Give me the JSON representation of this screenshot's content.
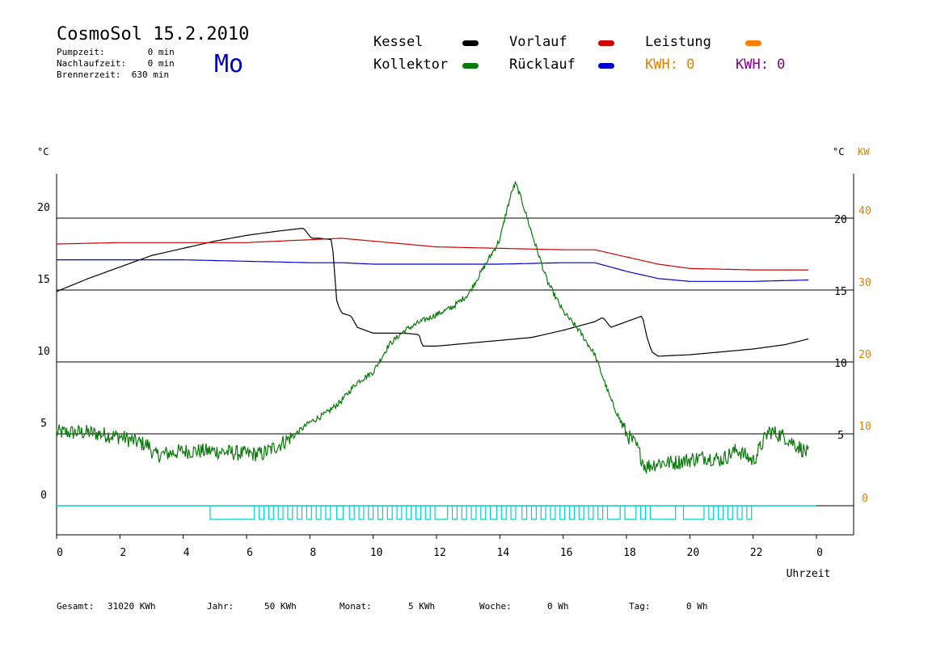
{
  "header": {
    "title": "CosmoSol 15.2.2010",
    "day": "Mo",
    "pumpzeit": "Pumpzeit:        0 min",
    "nachlaufzeit": "Nachlaufzeit:    0 min",
    "brennerzeit": "Brennerzeit:  630 min"
  },
  "legend": {
    "kessel": "Kessel",
    "vorlauf": "Vorlauf",
    "leistung": "Leistung",
    "kollektor": "Kollektor",
    "ruecklauf": "Rücklauf",
    "kwh_orange": "KWH: 0",
    "kwh_purple": "KWH: 0"
  },
  "footer": {
    "gesamt_label": "Gesamt:",
    "gesamt_value": "31020 KWh",
    "jahr_label": "Jahr:",
    "jahr_value": "50 KWh",
    "monat_label": "Monat:",
    "monat_value": "5 KWh",
    "woche_label": "Woche:",
    "woche_value": "0 Wh",
    "tag_label": "Tag:",
    "tag_value": "0 Wh"
  },
  "colors": {
    "kessel": "#000000",
    "kollektor": "#0a7a0a",
    "vorlauf": "#cc0000",
    "ruecklauf": "#0000cc",
    "leistung": "#ff8000",
    "pump": "#00d0d0",
    "kwh_purple": "#800080"
  },
  "chart_data": {
    "type": "line",
    "xlabel": "Uhrzeit",
    "y_left_unit": "°C",
    "y_right_unit": "°C",
    "y_right2_unit": "KW",
    "x_ticks": [
      "0",
      "2",
      "4",
      "6",
      "8",
      "10",
      "12",
      "14",
      "16",
      "18",
      "20",
      "22",
      "0"
    ],
    "y_left_ticks": [
      "0",
      "5",
      "10",
      "15",
      "20"
    ],
    "y_right_ticks": [
      "5",
      "10",
      "15",
      "20"
    ],
    "y_right2_ticks": [
      "0",
      "10",
      "20",
      "30",
      "40"
    ],
    "xlim": [
      0,
      24
    ],
    "ylim": [
      -1.6,
      23
    ],
    "grid": "horizontal",
    "series": [
      {
        "name": "Kessel",
        "key": "kessel",
        "x": [
          0,
          1,
          2,
          3,
          4,
          5,
          6,
          7,
          7.8,
          8.05,
          8.3,
          8.7,
          8.85,
          9,
          9.3,
          9.5,
          10,
          10.5,
          11,
          11.45,
          11.55,
          12,
          13,
          14,
          15,
          16,
          17,
          17.25,
          17.4,
          17.5,
          18,
          18.5,
          18.65,
          18.8,
          19,
          20,
          21,
          22,
          23,
          23.75
        ],
        "y": [
          14.9,
          15.8,
          16.6,
          17.4,
          17.9,
          18.4,
          18.8,
          19.1,
          19.3,
          18.6,
          18.6,
          18.5,
          14.2,
          13.4,
          13.2,
          12.4,
          12.0,
          12.0,
          12.0,
          11.9,
          11.1,
          11.1,
          11.3,
          11.5,
          11.7,
          12.2,
          12.8,
          13.1,
          12.7,
          12.4,
          12.8,
          13.2,
          11.7,
          10.7,
          10.4,
          10.5,
          10.7,
          10.9,
          11.2,
          11.6
        ]
      },
      {
        "name": "Vorlauf",
        "key": "vorlauf",
        "x": [
          0,
          2,
          4,
          6,
          8,
          9,
          10,
          12,
          14,
          16,
          17,
          18,
          19,
          20,
          22,
          23.75
        ],
        "y": [
          18.2,
          18.3,
          18.3,
          18.3,
          18.5,
          18.6,
          18.4,
          18.0,
          17.9,
          17.8,
          17.8,
          17.3,
          16.8,
          16.5,
          16.4,
          16.4
        ]
      },
      {
        "name": "Rücklauf",
        "key": "ruecklauf",
        "x": [
          0,
          2,
          4,
          6,
          8,
          9,
          10,
          12,
          14,
          16,
          17,
          18,
          19,
          20,
          22,
          23.75
        ],
        "y": [
          17.1,
          17.1,
          17.1,
          17.0,
          16.9,
          16.9,
          16.8,
          16.8,
          16.8,
          16.9,
          16.9,
          16.3,
          15.8,
          15.6,
          15.6,
          15.7
        ]
      },
      {
        "name": "Kollektor",
        "key": "kollektor",
        "x": [
          0,
          1,
          2,
          2.9,
          3.1,
          4,
          5,
          6,
          6.5,
          7,
          7.5,
          8,
          8.5,
          9,
          9.5,
          10,
          10.5,
          11,
          11.5,
          12,
          12.5,
          13,
          13.5,
          14,
          14.2,
          14.4,
          14.5,
          14.7,
          15,
          15.5,
          16,
          16.5,
          17,
          17.5,
          18,
          18.3,
          18.6,
          19,
          19.5,
          20,
          20.5,
          21,
          21.5,
          22,
          22.5,
          23,
          23.75
        ],
        "y": [
          5.1,
          5.1,
          4.8,
          4.2,
          3.5,
          3.8,
          3.8,
          3.6,
          3.6,
          4.2,
          4.9,
          5.8,
          6.4,
          7.3,
          8.6,
          9.3,
          11.2,
          12.2,
          12.8,
          13.3,
          13.8,
          14.7,
          16.6,
          18.5,
          20.4,
          22.0,
          22.4,
          21.2,
          19.0,
          15.6,
          13.5,
          12.2,
          10.5,
          7.4,
          5.0,
          4.2,
          2.7,
          3.0,
          3.0,
          3.2,
          3.4,
          3.2,
          3.9,
          3.1,
          5.2,
          4.8,
          3.6
        ]
      }
    ],
    "pump_pulses": [
      [
        4.85,
        6.25
      ],
      [
        6.4,
        6.55
      ],
      [
        6.7,
        6.85
      ],
      [
        7.0,
        7.15
      ],
      [
        7.3,
        7.45
      ],
      [
        7.6,
        7.75
      ],
      [
        7.9,
        8.05
      ],
      [
        8.2,
        8.35
      ],
      [
        8.5,
        8.65
      ],
      [
        8.85,
        9.05
      ],
      [
        9.25,
        9.4
      ],
      [
        9.55,
        9.7
      ],
      [
        9.85,
        10.0
      ],
      [
        10.15,
        10.3
      ],
      [
        10.45,
        10.6
      ],
      [
        10.75,
        10.9
      ],
      [
        11.05,
        11.2
      ],
      [
        11.35,
        11.5
      ],
      [
        11.65,
        11.8
      ],
      [
        11.95,
        12.35
      ],
      [
        12.5,
        12.65
      ],
      [
        12.8,
        12.95
      ],
      [
        13.1,
        13.25
      ],
      [
        13.4,
        13.55
      ],
      [
        13.7,
        13.9
      ],
      [
        14.05,
        14.2
      ],
      [
        14.35,
        14.5
      ],
      [
        14.7,
        14.85
      ],
      [
        15.0,
        15.15
      ],
      [
        15.3,
        15.45
      ],
      [
        15.6,
        15.75
      ],
      [
        15.9,
        16.05
      ],
      [
        16.2,
        16.35
      ],
      [
        16.5,
        16.65
      ],
      [
        16.8,
        16.95
      ],
      [
        17.1,
        17.25
      ],
      [
        17.4,
        17.8
      ],
      [
        17.95,
        18.3
      ],
      [
        18.45,
        18.6
      ],
      [
        18.75,
        19.55
      ],
      [
        19.8,
        20.45
      ],
      [
        20.6,
        20.75
      ],
      [
        20.9,
        21.05
      ],
      [
        21.2,
        21.35
      ],
      [
        21.5,
        21.65
      ],
      [
        21.8,
        21.95
      ]
    ]
  }
}
